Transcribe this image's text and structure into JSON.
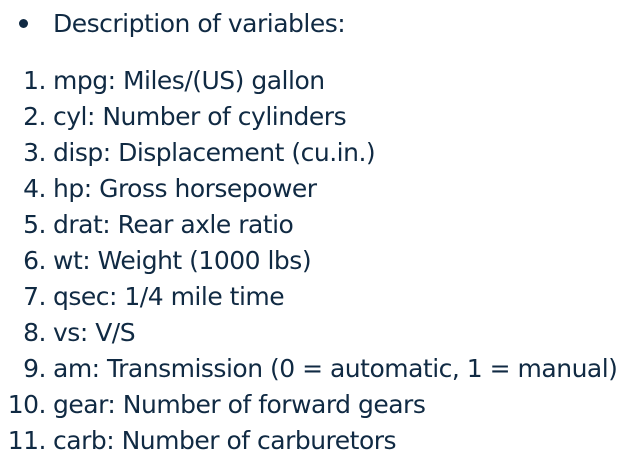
{
  "heading": {
    "text": "Description of variables:"
  },
  "variables": [
    {
      "num": "1.",
      "text": "mpg: Miles/(US) gallon"
    },
    {
      "num": "2.",
      "text": "cyl: Number of cylinders"
    },
    {
      "num": "3.",
      "text": "disp: Displacement (cu.in.)"
    },
    {
      "num": "4.",
      "text": "hp: Gross horsepower"
    },
    {
      "num": "5.",
      "text": "drat: Rear axle ratio"
    },
    {
      "num": "6.",
      "text": "wt: Weight (1000 lbs)"
    },
    {
      "num": "7.",
      "text": "qsec: 1/4 mile time"
    },
    {
      "num": "8.",
      "text": "vs: V/S"
    },
    {
      "num": "9.",
      "text": "am: Transmission (0 = automatic, 1 = manual)"
    },
    {
      "num": "10.",
      "text": "gear: Number of forward gears"
    },
    {
      "num": "11.",
      "text": "carb: Number of carburetors"
    }
  ]
}
